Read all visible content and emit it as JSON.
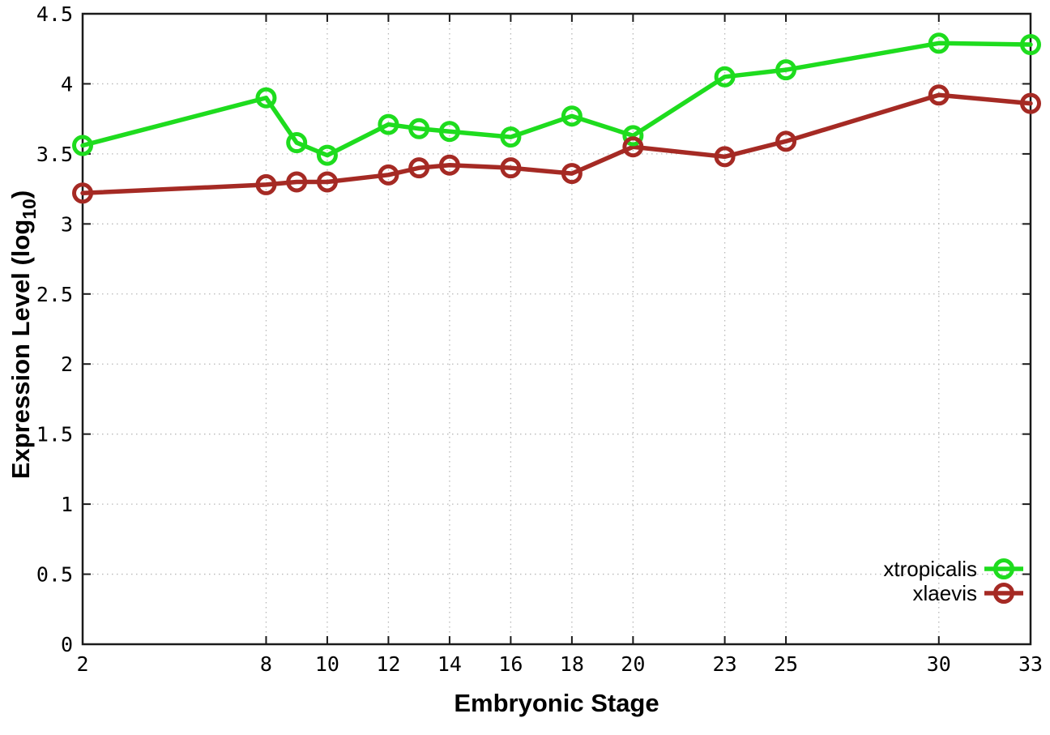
{
  "chart_data": {
    "type": "line",
    "title": "",
    "xlabel": "Embryonic Stage",
    "ylabel": "Expression Level (log10)",
    "ylabel_parts": {
      "main": "Expression Level (log",
      "sub": "10",
      "close": ")"
    },
    "x": [
      2,
      8,
      9,
      10,
      12,
      13,
      14,
      16,
      18,
      20,
      23,
      25,
      30,
      33
    ],
    "series": [
      {
        "name": "xtropicalis",
        "color": "#1edc1e",
        "values": [
          3.56,
          3.9,
          3.58,
          3.49,
          3.71,
          3.68,
          3.66,
          3.62,
          3.77,
          3.63,
          4.05,
          4.1,
          4.29,
          4.28
        ]
      },
      {
        "name": "xlaevis",
        "color": "#a52a24",
        "values": [
          3.22,
          3.28,
          3.3,
          3.3,
          3.35,
          3.4,
          3.42,
          3.4,
          3.36,
          3.55,
          3.48,
          3.59,
          3.92,
          3.86
        ]
      }
    ],
    "xlim": [
      2,
      33
    ],
    "ylim": [
      0,
      4.5
    ],
    "x_ticks": [
      2,
      8,
      10,
      12,
      14,
      16,
      18,
      20,
      23,
      25,
      30,
      33
    ],
    "x_tick_labels": [
      "2",
      "8",
      "10",
      "12",
      "14",
      "16",
      "18",
      "20",
      "23",
      "25",
      "30",
      "33"
    ],
    "y_ticks": [
      0,
      0.5,
      1,
      1.5,
      2,
      2.5,
      3,
      3.5,
      4,
      4.5
    ],
    "y_tick_labels": [
      "0",
      "0.5",
      "1",
      "1.5",
      "2",
      "2.5",
      "3",
      "3.5",
      "4",
      "4.5"
    ],
    "grid": true,
    "grid_style": "dotted",
    "legend_position": "bottom-right",
    "marker": "open-circle",
    "colors": {
      "axis": "#1a1a1a",
      "grid": "#b8b8b8",
      "background": "#ffffff"
    }
  }
}
